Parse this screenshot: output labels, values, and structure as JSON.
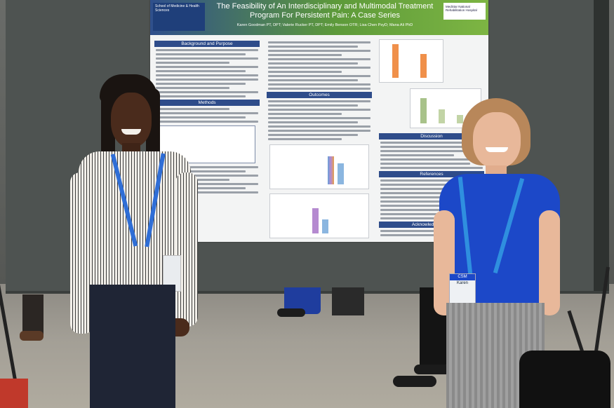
{
  "poster": {
    "title": "The Feasibility of An Interdisciplinary and Multimodal Treatment Program For Persistent Pain: A Case Series",
    "authors": "Karen Goodman PT, DPT; Valerie Rucker PT, DPT; Emily Benson OTR; Lisa Chen PsyD; Mana Ali PhD",
    "logo_left": "School of Medicine & Health Sciences",
    "logo_right": "MedStar National Rehabilitation Hospital",
    "sections": {
      "background": "Background and Purpose",
      "methods": "Methods",
      "outcomes": "Outcomes",
      "discussion": "Discussion",
      "references": "References",
      "acknowledgements": "Acknowledgements"
    }
  },
  "badges": {
    "right_badge": "Karen"
  },
  "colors": {
    "poster_header_blue": "#2f4f8c",
    "poster_header_green": "#7db543",
    "section_blue": "#2e4c8a",
    "board": "#4e5351",
    "lanyard_blue": "#2f6ed6",
    "shirt_blue": "#1c48c8"
  }
}
